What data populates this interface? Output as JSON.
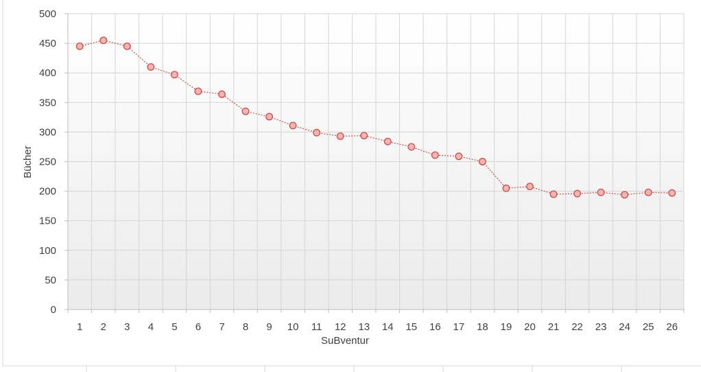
{
  "chart_data": {
    "type": "line",
    "title": "",
    "xlabel": "SuBventur",
    "ylabel": "Bücher",
    "x": [
      1,
      2,
      3,
      4,
      5,
      6,
      7,
      8,
      9,
      10,
      11,
      12,
      13,
      14,
      15,
      16,
      17,
      18,
      19,
      20,
      21,
      22,
      23,
      24,
      25,
      26
    ],
    "series": [
      {
        "values": [
          445,
          455,
          445,
          410,
          397,
          369,
          364,
          335,
          326,
          311,
          299,
          293,
          294,
          284,
          275,
          261,
          259,
          250,
          205,
          208,
          195,
          196,
          198,
          194,
          198,
          197
        ]
      }
    ],
    "xlim": [
      1,
      26
    ],
    "ylim": [
      0,
      500
    ],
    "y_ticks": [
      "0",
      "50",
      "100",
      "150",
      "200",
      "250",
      "300",
      "350",
      "400",
      "450",
      "500"
    ],
    "x_ticks": [
      "1",
      "2",
      "3",
      "4",
      "5",
      "6",
      "7",
      "8",
      "9",
      "10",
      "11",
      "12",
      "13",
      "14",
      "15",
      "16",
      "17",
      "18",
      "19",
      "20",
      "21",
      "22",
      "23",
      "24",
      "25",
      "26"
    ],
    "grid": true,
    "legend": "none",
    "colors": {
      "line": "#c0504d",
      "marker_fill": "#f6b3b0",
      "marker_edge": "#c0504d",
      "plot_bg_top": "#ffffff",
      "plot_bg_bottom": "#ebebeb",
      "grid": "#d4d4d4"
    }
  }
}
